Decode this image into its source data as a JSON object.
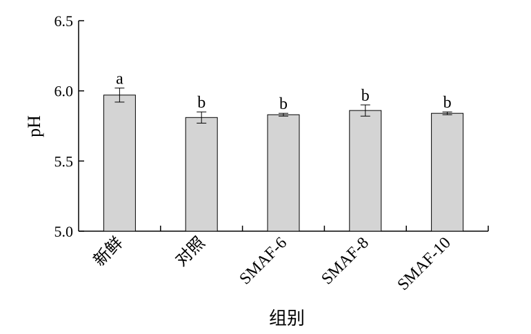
{
  "chart_data": {
    "type": "bar",
    "categories": [
      "新鲜",
      "对照",
      "SMAF-6",
      "SMAF-8",
      "SMAF-10"
    ],
    "values": [
      5.97,
      5.81,
      5.83,
      5.86,
      5.84
    ],
    "errors": [
      0.05,
      0.04,
      0.01,
      0.04,
      0.01
    ],
    "significance": [
      "a",
      "b",
      "b",
      "b",
      "b"
    ],
    "xlabel": "组别",
    "ylabel": "pH",
    "ylim": [
      5.0,
      6.5
    ],
    "yticks": [
      "5.0",
      "5.5",
      "6.0",
      "6.5"
    ],
    "bar_color": "#d4d4d4",
    "grid": false
  }
}
